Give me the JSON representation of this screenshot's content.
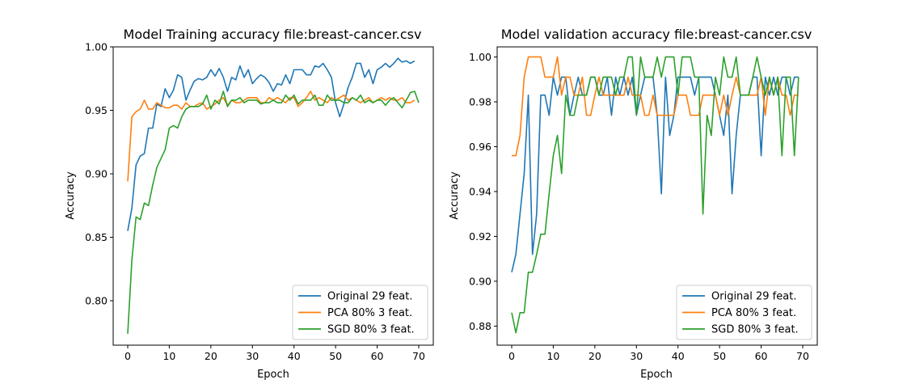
{
  "chart_data": [
    {
      "type": "line",
      "title": "Model Training accuracy file:breast-cancer.csv",
      "xlabel": "Epoch",
      "ylabel": "Accuracy",
      "xlim": [
        -3.5,
        73.5
      ],
      "ylim": [
        0.765,
        1.0
      ],
      "xticks": [
        0,
        10,
        20,
        30,
        40,
        50,
        60,
        70
      ],
      "xtick_labels": [
        "0",
        "10",
        "20",
        "30",
        "40",
        "50",
        "60",
        "70"
      ],
      "yticks": [
        0.8,
        0.85,
        0.9,
        0.95,
        1.0
      ],
      "ytick_labels": [
        "0.80",
        "0.85",
        "0.90",
        "0.95",
        "1.00"
      ],
      "legend_position": "lower-right",
      "series": [
        {
          "name": "Original 29 feat.",
          "color": "#1f77b4",
          "values": [
            0.855,
            0.873,
            0.907,
            0.914,
            0.916,
            0.936,
            0.936,
            0.955,
            0.953,
            0.967,
            0.96,
            0.966,
            0.978,
            0.976,
            0.958,
            0.966,
            0.973,
            0.975,
            0.974,
            0.976,
            0.982,
            0.977,
            0.983,
            0.976,
            0.965,
            0.976,
            0.974,
            0.985,
            0.976,
            0.982,
            0.971,
            0.975,
            0.978,
            0.976,
            0.972,
            0.965,
            0.971,
            0.97,
            0.978,
            0.971,
            0.982,
            0.982,
            0.982,
            0.978,
            0.978,
            0.985,
            0.984,
            0.987,
            0.982,
            0.976,
            0.956,
            0.945,
            0.955,
            0.968,
            0.976,
            0.987,
            0.987,
            0.976,
            0.982,
            0.971,
            0.982,
            0.984,
            0.987,
            0.984,
            0.987,
            0.991,
            0.988,
            0.989,
            0.987,
            0.989
          ]
        },
        {
          "name": "PCA 80% 3 feat.",
          "color": "#ff7f0e",
          "values": [
            0.894,
            0.945,
            0.949,
            0.951,
            0.958,
            0.951,
            0.951,
            0.956,
            0.954,
            0.952,
            0.952,
            0.954,
            0.954,
            0.951,
            0.956,
            0.953,
            0.953,
            0.955,
            0.956,
            0.951,
            0.953,
            0.955,
            0.958,
            0.96,
            0.954,
            0.958,
            0.956,
            0.956,
            0.958,
            0.96,
            0.96,
            0.96,
            0.956,
            0.956,
            0.96,
            0.958,
            0.96,
            0.958,
            0.956,
            0.96,
            0.96,
            0.953,
            0.956,
            0.96,
            0.965,
            0.958,
            0.96,
            0.958,
            0.956,
            0.96,
            0.958,
            0.96,
            0.962,
            0.958,
            0.96,
            0.958,
            0.956,
            0.958,
            0.96,
            0.956,
            0.958,
            0.96,
            0.958,
            0.96,
            0.958,
            0.958,
            0.96,
            0.956,
            0.956,
            0.958
          ]
        },
        {
          "name": "SGD 80% 3 feat.",
          "color": "#2ca02c",
          "values": [
            0.774,
            0.832,
            0.866,
            0.864,
            0.877,
            0.875,
            0.891,
            0.905,
            0.912,
            0.919,
            0.936,
            0.938,
            0.936,
            0.945,
            0.951,
            0.953,
            0.953,
            0.953,
            0.955,
            0.962,
            0.951,
            0.958,
            0.955,
            0.965,
            0.953,
            0.958,
            0.958,
            0.96,
            0.956,
            0.958,
            0.958,
            0.958,
            0.955,
            0.956,
            0.956,
            0.958,
            0.956,
            0.956,
            0.962,
            0.958,
            0.962,
            0.955,
            0.958,
            0.958,
            0.958,
            0.962,
            0.954,
            0.954,
            0.962,
            0.958,
            0.958,
            0.958,
            0.956,
            0.956,
            0.96,
            0.958,
            0.962,
            0.956,
            0.958,
            0.956,
            0.958,
            0.958,
            0.954,
            0.958,
            0.96,
            0.956,
            0.952,
            0.958,
            0.964,
            0.965,
            0.956
          ]
        }
      ]
    },
    {
      "type": "line",
      "title": "Model validation accuracy file:breast-cancer.csv",
      "xlabel": "Epoch",
      "ylabel": "Accuracy",
      "xlim": [
        -3.5,
        73.5
      ],
      "ylim": [
        0.8715,
        1.0045
      ],
      "xticks": [
        0,
        10,
        20,
        30,
        40,
        50,
        60,
        70
      ],
      "xtick_labels": [
        "0",
        "10",
        "20",
        "30",
        "40",
        "50",
        "60",
        "70"
      ],
      "yticks": [
        0.88,
        0.9,
        0.92,
        0.94,
        0.96,
        0.98,
        1.0
      ],
      "ytick_labels": [
        "0.88",
        "0.90",
        "0.92",
        "0.94",
        "0.96",
        "0.98",
        "1.00"
      ],
      "legend_position": "lower-right",
      "series": [
        {
          "name": "Original 29 feat.",
          "color": "#1f77b4",
          "values": [
            0.904,
            0.912,
            0.93,
            0.948,
            0.983,
            0.912,
            0.93,
            0.983,
            0.983,
            0.974,
            0.991,
            0.983,
            0.991,
            0.991,
            0.974,
            0.983,
            0.991,
            0.983,
            0.983,
            0.991,
            0.991,
            0.983,
            0.983,
            0.991,
            0.974,
            0.991,
            0.983,
            0.991,
            0.983,
            0.991,
            0.974,
            0.983,
            0.991,
            0.991,
            0.991,
            0.974,
            0.939,
            0.991,
            0.965,
            0.974,
            0.991,
            0.991,
            0.991,
            0.991,
            0.983,
            0.991,
            0.991,
            0.991,
            0.991,
            0.983,
            0.974,
            0.965,
            0.983,
            0.939,
            0.965,
            0.983,
            0.983,
            0.983,
            0.991,
            0.991,
            0.956,
            0.991,
            0.983,
            0.991,
            0.983,
            0.991,
            0.991,
            0.983,
            0.991,
            0.991
          ]
        },
        {
          "name": "PCA 80% 3 feat.",
          "color": "#ff7f0e",
          "values": [
            0.956,
            0.956,
            0.965,
            0.991,
            1.0,
            1.0,
            1.0,
            1.0,
            0.991,
            0.991,
            0.991,
            1.0,
            0.983,
            0.991,
            0.991,
            0.983,
            0.983,
            0.991,
            0.974,
            0.974,
            0.983,
            0.991,
            0.983,
            0.983,
            0.983,
            0.983,
            0.983,
            0.983,
            0.991,
            0.983,
            0.983,
            0.983,
            0.974,
            0.974,
            0.983,
            0.974,
            0.974,
            0.974,
            0.974,
            0.974,
            0.983,
            0.983,
            0.983,
            0.974,
            0.974,
            0.974,
            0.983,
            0.983,
            0.983,
            0.983,
            0.974,
            0.983,
            0.974,
            0.983,
            0.991,
            0.983,
            0.983,
            0.983,
            0.983,
            0.983,
            0.991,
            0.974,
            0.991,
            0.983,
            0.991,
            0.983,
            0.983,
            0.974,
            0.983,
            0.983
          ]
        },
        {
          "name": "SGD 80% 3 feat.",
          "color": "#2ca02c",
          "values": [
            0.886,
            0.877,
            0.886,
            0.886,
            0.904,
            0.904,
            0.912,
            0.921,
            0.921,
            0.939,
            0.956,
            0.965,
            0.948,
            0.983,
            0.974,
            0.974,
            0.983,
            0.983,
            0.983,
            0.991,
            0.991,
            0.983,
            0.991,
            0.991,
            0.991,
            0.983,
            0.991,
            0.991,
            1.0,
            1.0,
            0.974,
            1.0,
            0.991,
            0.991,
            0.991,
            1.0,
            0.991,
            1.0,
            1.0,
            1.0,
            0.983,
            1.0,
            1.0,
            1.0,
            0.991,
            0.991,
            0.93,
            0.974,
            0.965,
            0.991,
            0.983,
            1.0,
            0.991,
            0.991,
            1.0,
            0.983,
            0.983,
            0.983,
            0.991,
            1.0,
            0.991,
            0.983,
            0.991,
            0.983,
            0.991,
            0.956,
            0.991,
            0.991,
            0.956,
            0.991
          ]
        }
      ]
    }
  ]
}
